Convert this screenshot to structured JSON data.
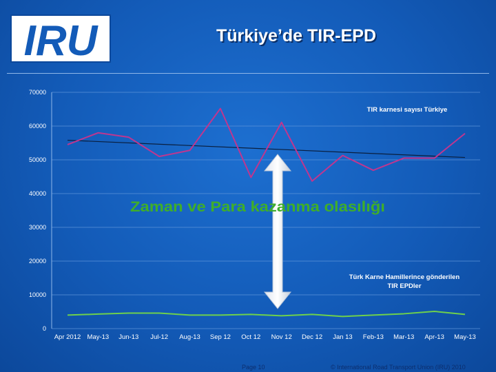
{
  "slide": {
    "title": "Türkiye’de TIR-EPD",
    "logo_text": "IRU",
    "page_label": "Page 10",
    "copyright": "© International Road Transport Union (IRU) 2010"
  },
  "colors": {
    "background": "#1561c4",
    "tir_series": "#c0368f",
    "epd_series": "#6fd14b",
    "trend_line": "#0a1e3d",
    "annotation_green": "#3fae2a"
  },
  "chart_data": {
    "type": "line",
    "categories": [
      "Apr 2012",
      "May-13",
      "Jun-13",
      "Jul-12",
      "Aug-13",
      "Sep 12",
      "Oct 12",
      "Nov 12",
      "Dec 12",
      "Jan 13",
      "Feb-13",
      "Mar-13",
      "Apr-13",
      "May-13"
    ],
    "ylim": [
      0,
      70000
    ],
    "yticks": [
      "0",
      "10000",
      "20000",
      "30000",
      "40000",
      "50000",
      "60000",
      "70000"
    ],
    "grid": true,
    "series": [
      {
        "name": "TIR karnesi sayısı Türkiye",
        "values": [
          54500,
          58000,
          56700,
          51000,
          52800,
          65200,
          44800,
          61100,
          43700,
          51300,
          46900,
          50500,
          50500,
          57800
        ]
      },
      {
        "name": "Türk Karne Hamillerince gönderilen TIR EPDler",
        "values": [
          4000,
          4300,
          4600,
          4600,
          4000,
          4000,
          4200,
          3800,
          4200,
          3600,
          4000,
          4400,
          5100,
          4200
        ]
      }
    ],
    "trend": {
      "start": 55800,
      "end": 50700
    },
    "annotation": "Zaman ve Para kazanma olasılığı",
    "legend_tir": "TIR karnesi sayısı Türkiye",
    "legend_epd_line1": "Türk Karne Hamillerince gönderilen",
    "legend_epd_line2": "TIR EPDler"
  }
}
